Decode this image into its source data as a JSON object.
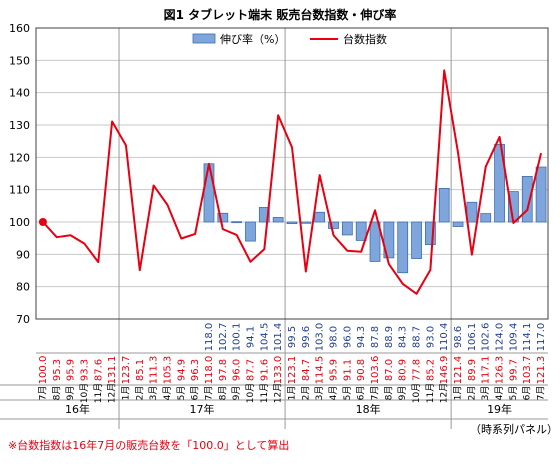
{
  "chart_data": {
    "type": "bar+line",
    "title": "図1 タブレット端末 販売台数指数・伸び率",
    "legend": {
      "position": "top",
      "bar_label": "伸び率（%）",
      "line_label": "台数指数"
    },
    "ylim": [
      70,
      160
    ],
    "yticks": [
      70,
      80,
      90,
      100,
      110,
      120,
      130,
      140,
      150,
      160
    ],
    "months": [
      "7月",
      "8月",
      "9月",
      "10月",
      "11月",
      "12月",
      "1月",
      "2月",
      "3月",
      "4月",
      "5月",
      "6月",
      "7月",
      "8月",
      "9月",
      "10月",
      "11月",
      "12月",
      "1月",
      "2月",
      "3月",
      "4月",
      "5月",
      "6月",
      "7月",
      "8月",
      "9月",
      "10月",
      "11月",
      "12月",
      "1月",
      "2月",
      "3月",
      "4月",
      "5月",
      "6月",
      "7月"
    ],
    "years": [
      {
        "label": "16年",
        "start": 0,
        "end": 6
      },
      {
        "label": "17年",
        "start": 6,
        "end": 18
      },
      {
        "label": "18年",
        "start": 18,
        "end": 30
      },
      {
        "label": "19年",
        "start": 30,
        "end": 37
      }
    ],
    "growth": [
      null,
      null,
      null,
      null,
      null,
      null,
      null,
      null,
      null,
      null,
      null,
      null,
      118.0,
      102.7,
      100.1,
      94.1,
      104.5,
      101.4,
      99.5,
      99.6,
      103.0,
      98.0,
      96.0,
      94.3,
      87.8,
      88.9,
      84.3,
      88.7,
      93.0,
      110.4,
      98.6,
      106.1,
      102.6,
      124.0,
      109.4,
      114.1,
      117.0
    ],
    "index": [
      100.0,
      95.3,
      95.9,
      93.3,
      87.6,
      131.1,
      123.7,
      85.1,
      111.3,
      105.3,
      94.9,
      96.3,
      118.0,
      97.8,
      96.0,
      87.7,
      91.6,
      133.0,
      123.1,
      84.7,
      114.5,
      95.9,
      91.1,
      90.8,
      103.6,
      87.0,
      80.9,
      77.8,
      85.2,
      146.9,
      121.4,
      89.9,
      117.1,
      126.3,
      99.7,
      103.7,
      121.3
    ],
    "footnote": "※台数指数は16年7月の販売台数を「100.0」として算出",
    "panel_note": "（時系列パネル）",
    "colors": {
      "bar_fill": "#7fa6dc",
      "bar_stroke": "#3f6ea9",
      "line": "#e60012",
      "grid": "#c9c9c9",
      "axis": "#404040",
      "start_marker": "#e60012"
    }
  }
}
